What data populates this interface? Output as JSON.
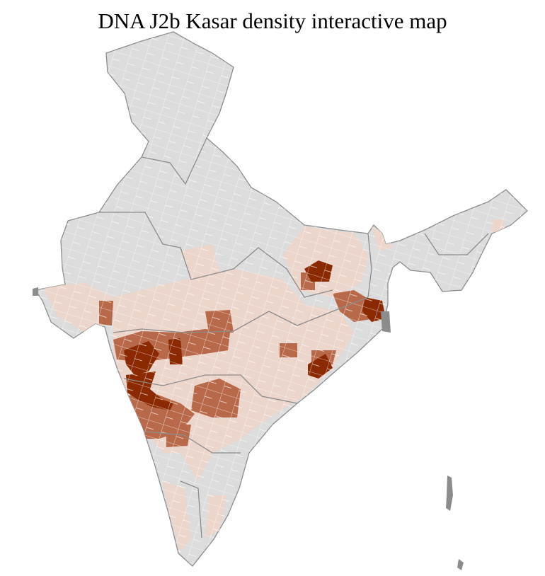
{
  "title": "DNA J2b Kasar density interactive map",
  "colors": {
    "no_data": "#dcdcdc",
    "low": "#ecd5cb",
    "medium": "#b8694a",
    "high": "#8b2a00",
    "district_border": "#ffffff",
    "state_border": "#8c8c8c"
  }
}
